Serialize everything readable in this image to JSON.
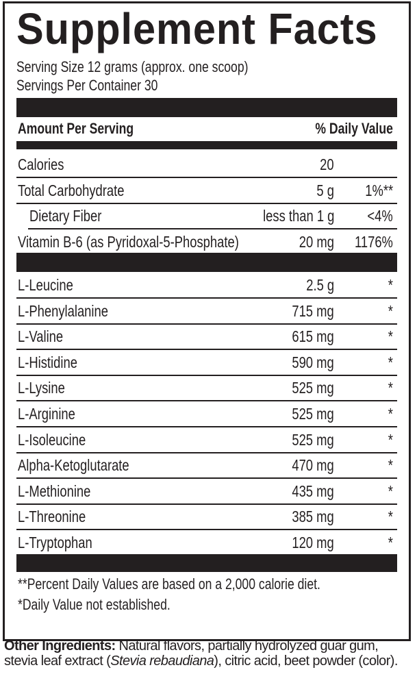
{
  "title": "Supplement Facts",
  "serving_size": "Serving Size 12 grams (approx. one scoop)",
  "servings_per_container": "Servings Per Container 30",
  "header": {
    "amount": "Amount Per Serving",
    "daily_value": "% Daily Value"
  },
  "nutrients": [
    {
      "name": "Calories",
      "amount": "20",
      "dv": ""
    },
    {
      "name": "Total Carbohydrate",
      "amount": "5 g",
      "dv": "1%**"
    },
    {
      "name": "Dietary Fiber",
      "amount": "less than 1 g",
      "dv": "<4%",
      "indent": true
    },
    {
      "name": "Vitamin B-6 (as Pyridoxal-5-Phosphate)",
      "amount": "20 mg",
      "dv": "1176%"
    }
  ],
  "amino_acids": [
    {
      "name": "L-Leucine",
      "amount": "2.5 g",
      "dv": "*"
    },
    {
      "name": "L-Phenylalanine",
      "amount": "715 mg",
      "dv": "*"
    },
    {
      "name": "L-Valine",
      "amount": "615 mg",
      "dv": "*"
    },
    {
      "name": "L-Histidine",
      "amount": "590 mg",
      "dv": "*"
    },
    {
      "name": "L-Lysine",
      "amount": "525 mg",
      "dv": "*"
    },
    {
      "name": "L-Arginine",
      "amount": "525 mg",
      "dv": "*"
    },
    {
      "name": "L-Isoleucine",
      "amount": "525 mg",
      "dv": "*"
    },
    {
      "name": "Alpha-Ketoglutarate",
      "amount": "470 mg",
      "dv": "*"
    },
    {
      "name": "L-Methionine",
      "amount": "435 mg",
      "dv": "*"
    },
    {
      "name": "L-Threonine",
      "amount": "385 mg",
      "dv": "*"
    },
    {
      "name": "L-Tryptophan",
      "amount": "120 mg",
      "dv": "*"
    }
  ],
  "footnotes": [
    "**Percent Daily Values are based on a 2,000 calorie diet.",
    "*Daily Value not established."
  ],
  "other_ingredients": {
    "label": "Other Ingredients:",
    "text_before": " Natural flavors, partially hydrolyzed guar gum, stevia leaf extract (",
    "italic": "Stevia rebaudiana",
    "text_after": "), citric acid, beet powder (color)."
  },
  "colors": {
    "ink": "#231f20",
    "background": "#ffffff"
  }
}
